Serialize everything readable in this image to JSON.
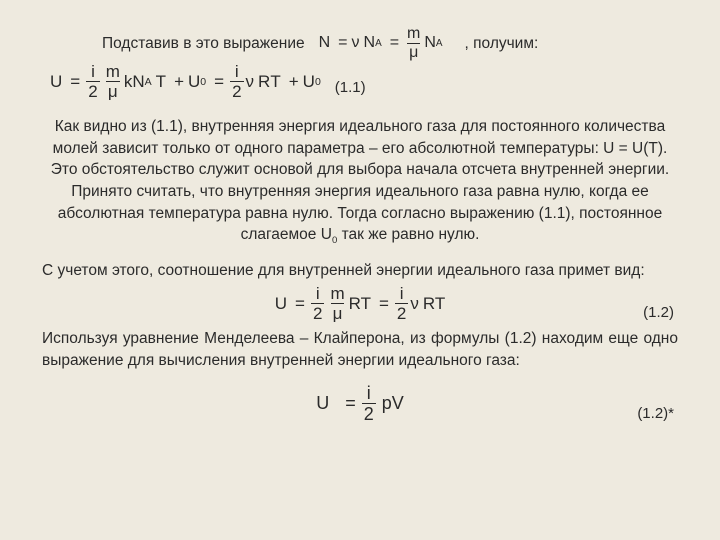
{
  "line1": {
    "before": "Подставив в это выражение",
    "after": ", получим:"
  },
  "eqN": {
    "N": "N",
    "eq1": "=",
    "nu": "ν",
    "NA": "N",
    "Asub": "A",
    "eq2": "=",
    "m": "m",
    "mu": "μ",
    "NA2": "N",
    "Asub2": "A"
  },
  "eqU1": {
    "U": "U",
    "eq": "=",
    "i": "i",
    "two": "2",
    "m": "m",
    "mu": "μ",
    "k": "k",
    "N": "N",
    "Asub": "A",
    "T": "T",
    "plus": "+",
    "U0": "U",
    "zero": "0",
    "eq2": "=",
    "nu": "ν",
    "R": "R",
    "label": "(1.1)"
  },
  "para1": "Как видно из (1.1), внутренняя энергия идеального газа для постоянного количества молей зависит только от одного параметра – его абсолютной температуры: U = U(T). Это обстоятельство служит основой для выбора начала отсчета внутренней энергии. Принято считать, что внутренняя энергия идеального газа равна нулю, когда ее абсолютная температура равна нулю. Тогда согласно выражению (1.1), постоянное слагаемое U",
  "para1_sub": "0",
  "para1_tail": " так же равно нулю.",
  "para2": "С учетом этого, соотношение для внутренней энергии идеального газа примет вид:",
  "eq12": {
    "U": "U",
    "eq": "=",
    "i": "i",
    "two": "2",
    "m": "m",
    "mu": "μ",
    "RT": "RT",
    "eq2": "=",
    "nu": "ν",
    "label": "(1.2)"
  },
  "para3": "Используя уравнение Менделеева – Клайперона, из формулы (1.2) находим еще одно выражение для вычисления внутренней энергии идеального газа:",
  "eq12s": {
    "U": "U",
    "eq": "=",
    "i": "i",
    "two": "2",
    "pV": "pV",
    "label": "(1.2)*"
  }
}
